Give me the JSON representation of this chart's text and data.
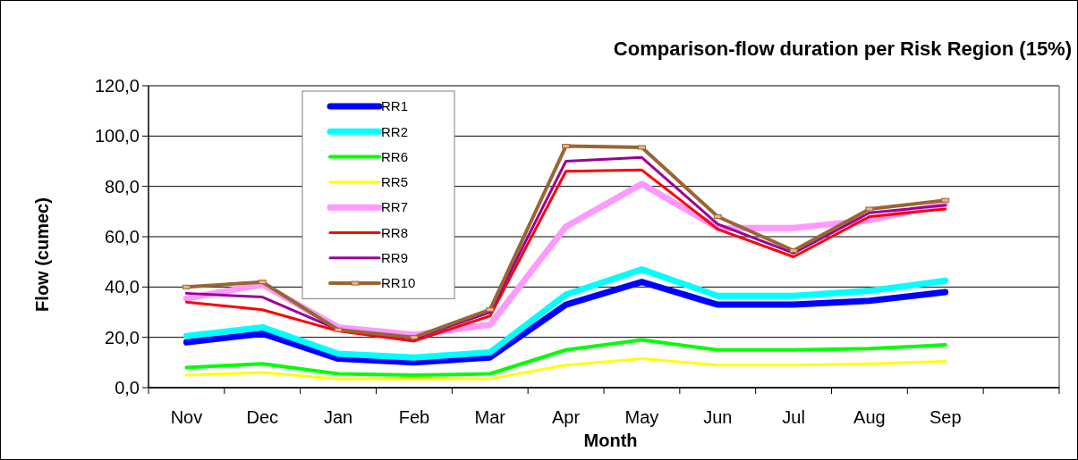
{
  "chart_data": {
    "type": "line",
    "title": "Comparison-flow duration per Risk Region (15%)",
    "xlabel": "Month",
    "ylabel": "Flow (cumec)",
    "categories": [
      "Nov",
      "Dec",
      "Jan",
      "Feb",
      "Mar",
      "Apr",
      "May",
      "Jun",
      "Jul",
      "Aug",
      "Sep",
      null
    ],
    "ylim": [
      0,
      120
    ],
    "yticks": [
      {
        "value": 0,
        "label": "0,0"
      },
      {
        "value": 20,
        "label": "20,0"
      },
      {
        "value": 40,
        "label": "40,0"
      },
      {
        "value": 60,
        "label": "60,0"
      },
      {
        "value": 80,
        "label": "80,0"
      },
      {
        "value": 100,
        "label": "100,0"
      },
      {
        "value": 120,
        "label": "120,0"
      }
    ],
    "grid": "y",
    "legend": "top left",
    "marker": "none",
    "line_style": "solid",
    "series": [
      {
        "name": "RR1",
        "color": "#0000ff",
        "values": [
          18,
          21.5,
          11.5,
          10,
          12,
          33,
          42,
          33,
          33,
          34.5,
          38,
          null
        ]
      },
      {
        "name": "RR2",
        "color": "#00ffff",
        "values": [
          20.5,
          24,
          13.5,
          12,
          14,
          37,
          47,
          36.5,
          36.5,
          38.5,
          42.5,
          null
        ]
      },
      {
        "name": "RR6",
        "color": "#00ff00",
        "values": [
          8,
          9.5,
          5.5,
          5,
          5.5,
          15,
          19,
          15,
          15,
          15.5,
          17,
          null
        ]
      },
      {
        "name": "RR5",
        "color": "#ffff00",
        "values": [
          5,
          6,
          3.5,
          3.5,
          3.5,
          9,
          11.5,
          9,
          9,
          9.5,
          10.5,
          null
        ]
      },
      {
        "name": "RR7",
        "color": "#ff99ff",
        "values": [
          35.5,
          41,
          24,
          21,
          25,
          64,
          81,
          63.5,
          63.5,
          66.5,
          73,
          null
        ]
      },
      {
        "name": "RR8",
        "color": "#ff0000",
        "values": [
          34,
          31,
          22.5,
          18.5,
          28.5,
          86,
          86.5,
          63,
          52,
          68,
          71,
          null
        ]
      },
      {
        "name": "RR9",
        "color": "#990099",
        "values": [
          37.5,
          36,
          23,
          19.5,
          30,
          90,
          91.5,
          65,
          53.5,
          69.5,
          72.5,
          null
        ]
      },
      {
        "name": "RR10",
        "color": "#996633",
        "marker": "square",
        "values": [
          40,
          42,
          23,
          20,
          31,
          96,
          95.5,
          68,
          54.5,
          71,
          74.5,
          null
        ]
      }
    ]
  }
}
